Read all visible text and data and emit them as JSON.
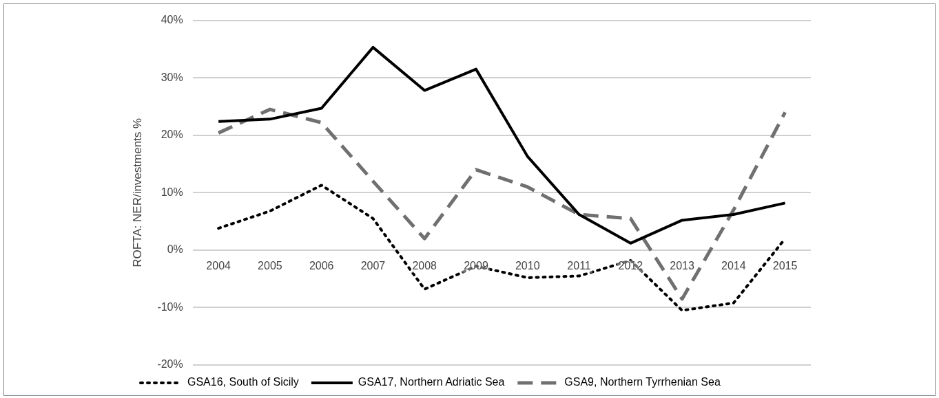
{
  "chart_data": {
    "type": "line",
    "ylabel": "ROFTA: NER/investments %",
    "categories": [
      "2004",
      "2005",
      "2006",
      "2007",
      "2008",
      "2009",
      "2010",
      "2011",
      "2012",
      "2013",
      "2014",
      "2015"
    ],
    "series": [
      {
        "name": "GSA16, South of Sicily",
        "color": "#000000",
        "line_style": "dotted",
        "values": [
          3.8,
          6.8,
          11.3,
          5.5,
          -6.8,
          -2.8,
          -4.8,
          -4.5,
          -1.8,
          -10.5,
          -9.2,
          2
        ]
      },
      {
        "name": "GSA17, Northern Adriatic Sea",
        "color": "#000000",
        "line_style": "solid",
        "values": [
          22.4,
          22.8,
          24.7,
          35.3,
          27.8,
          31.5,
          16.3,
          6.2,
          1.2,
          5.2,
          6.2,
          8.2
        ]
      },
      {
        "name": "GSA9, Northern Tyrrhenian Sea",
        "color": "#707070",
        "line_style": "dashed",
        "values": [
          20.4,
          24.5,
          22.2,
          12,
          2,
          14,
          11,
          6.2,
          5.5,
          -8.5,
          7,
          24
        ]
      }
    ],
    "ylim": [
      -20,
      40
    ],
    "yticks": [
      {
        "value": -20,
        "label": "-20%"
      },
      {
        "value": -10,
        "label": "-10%"
      },
      {
        "value": 0,
        "label": "0%"
      },
      {
        "value": 10,
        "label": "10%"
      },
      {
        "value": 20,
        "label": "20%"
      },
      {
        "value": 30,
        "label": "30%"
      },
      {
        "value": 40,
        "label": "40%"
      }
    ],
    "grid": "y",
    "legend": "bottom",
    "marker": "none"
  }
}
